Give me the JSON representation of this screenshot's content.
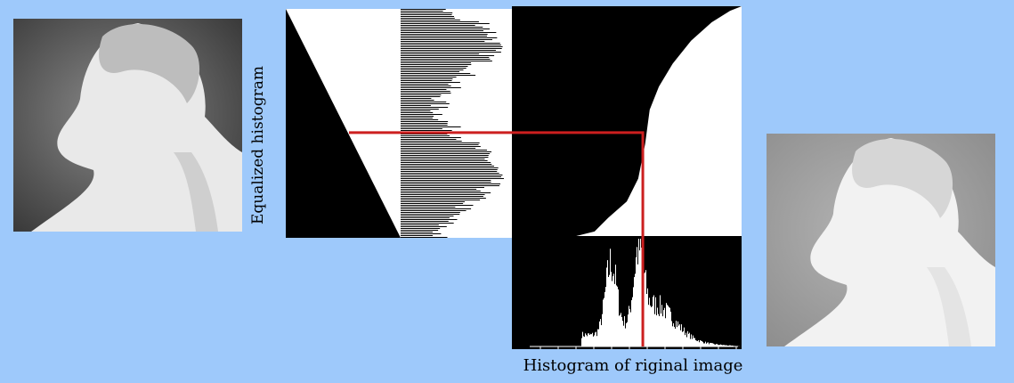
{
  "labels": {
    "equalized_histogram": "Equalized histogram",
    "original_histogram": "Histogram of riginal image"
  },
  "colors": {
    "background": "#9ec9fb",
    "panel": "#000000",
    "curve_fill": "#ffffff",
    "mapping_line": "#cc1f1f"
  },
  "images": {
    "original": {
      "subject": "marble statue head, low contrast"
    },
    "equalized": {
      "subject": "marble statue head, equalized"
    }
  },
  "chart_data": {
    "type": "diagram",
    "title": "",
    "original_histogram": {
      "peaks": [
        0.43,
        0.55
      ],
      "range": [
        0.3,
        1.0
      ]
    },
    "cdf": [
      [
        0.0,
        0.0
      ],
      [
        0.28,
        0.0
      ],
      [
        0.36,
        0.02
      ],
      [
        0.42,
        0.08
      ],
      [
        0.5,
        0.15
      ],
      [
        0.55,
        0.25
      ],
      [
        0.58,
        0.4
      ],
      [
        0.6,
        0.55
      ],
      [
        0.64,
        0.65
      ],
      [
        0.7,
        0.75
      ],
      [
        0.78,
        0.85
      ],
      [
        0.87,
        0.93
      ],
      [
        0.95,
        0.98
      ],
      [
        1.0,
        1.0
      ]
    ],
    "mapping_example": {
      "input": 0.57,
      "output": 0.45
    }
  }
}
